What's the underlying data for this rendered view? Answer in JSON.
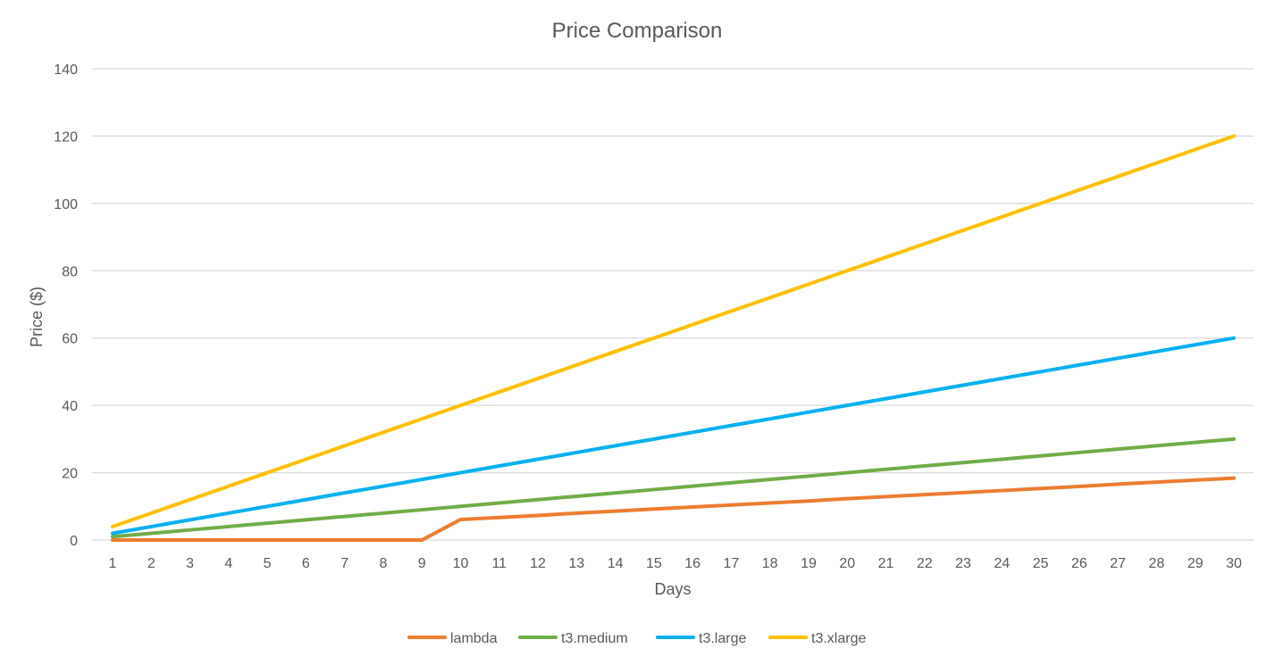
{
  "chart_data": {
    "type": "line",
    "title": "Price Comparison",
    "xlabel": "Days",
    "ylabel": "Price ($)",
    "ylim": [
      0,
      140
    ],
    "y_ticks": [
      0,
      20,
      40,
      60,
      80,
      100,
      120,
      140
    ],
    "grid": true,
    "legend_position": "bottom",
    "categories": [
      1,
      2,
      3,
      4,
      5,
      6,
      7,
      8,
      9,
      10,
      11,
      12,
      13,
      14,
      15,
      16,
      17,
      18,
      19,
      20,
      21,
      22,
      23,
      24,
      25,
      26,
      27,
      28,
      29,
      30
    ],
    "series": [
      {
        "name": "lambda",
        "color": "#ED7D31",
        "values": [
          0,
          0,
          0,
          0,
          0,
          0,
          0,
          0,
          0,
          6.1,
          6.7,
          7.3,
          8.0,
          8.6,
          9.2,
          9.8,
          10.4,
          11.0,
          11.6,
          12.3,
          12.9,
          13.5,
          14.1,
          14.7,
          15.3,
          15.9,
          16.6,
          17.2,
          17.8,
          18.4
        ]
      },
      {
        "name": "t3.medium",
        "color": "#70AD47",
        "values": [
          1,
          2,
          3,
          4,
          5,
          6,
          7,
          8,
          9,
          10,
          11,
          12,
          13,
          14,
          15,
          16,
          17,
          18,
          19,
          20,
          21,
          22,
          23,
          24,
          25,
          26,
          27,
          28,
          29,
          30
        ]
      },
      {
        "name": "t3.large",
        "color": "#00B0F0",
        "values": [
          2,
          4,
          6,
          8,
          10,
          12,
          14,
          16,
          18,
          20,
          22,
          24,
          26,
          28,
          30,
          32,
          34,
          36,
          38,
          40,
          42,
          44,
          46,
          48,
          50,
          52,
          54,
          56,
          58,
          60
        ]
      },
      {
        "name": "t3.xlarge",
        "color": "#FFC000",
        "values": [
          4,
          8,
          12,
          16,
          20,
          24,
          28,
          32,
          36,
          40,
          44,
          48,
          52,
          56,
          60,
          64,
          68,
          72,
          76,
          80,
          84,
          88,
          92,
          96,
          100,
          104,
          108,
          112,
          116,
          120
        ]
      }
    ]
  }
}
